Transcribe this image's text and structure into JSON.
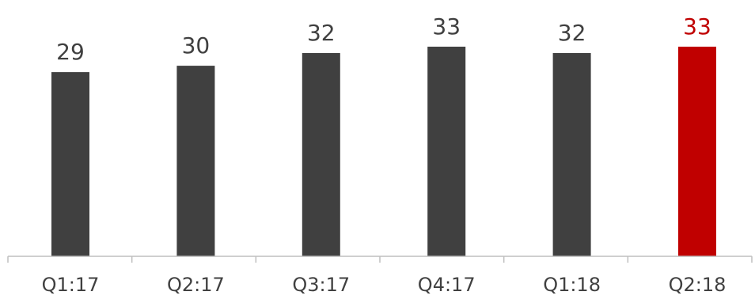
{
  "chart_data": {
    "type": "bar",
    "categories": [
      "Q1:17",
      "Q2:17",
      "Q3:17",
      "Q4:17",
      "Q1:18",
      "Q2:18"
    ],
    "values": [
      29,
      30,
      32,
      33,
      32,
      33
    ],
    "value_labels": [
      "29",
      "30",
      "32",
      "33",
      "32",
      "33"
    ],
    "highlight_index": 5,
    "colors": {
      "bar": "#404040",
      "highlight": "#c00000",
      "label": "#404040",
      "highlight_label": "#c00000"
    },
    "title": "",
    "xlabel": "",
    "ylabel": "",
    "grid": false,
    "legend": "none"
  }
}
